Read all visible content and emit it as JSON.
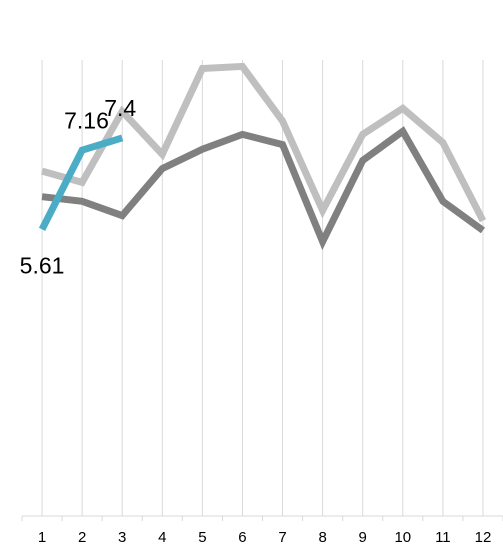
{
  "chart_data": {
    "type": "line",
    "categories": [
      "1",
      "2",
      "3",
      "4",
      "5",
      "6",
      "7",
      "8",
      "9",
      "10",
      "11",
      "12"
    ],
    "series": [
      {
        "color": "#bfbfbf",
        "values": [
          6.75,
          6.53,
          7.92,
          7.08,
          8.76,
          8.8,
          7.73,
          5.98,
          7.47,
          7.98,
          7.31,
          5.78
        ]
      },
      {
        "color": "#808080",
        "values": [
          6.25,
          6.16,
          5.88,
          6.8,
          7.18,
          7.47,
          7.27,
          5.37,
          6.96,
          7.53,
          6.16,
          5.59
        ]
      },
      {
        "color": "#4bacc6",
        "values": [
          5.61,
          7.16,
          7.4,
          null,
          null,
          null,
          null,
          null,
          null,
          null,
          null,
          null
        ],
        "data_labels": true
      }
    ],
    "ylim": [
      0,
      10.1
    ],
    "grid": true
  }
}
